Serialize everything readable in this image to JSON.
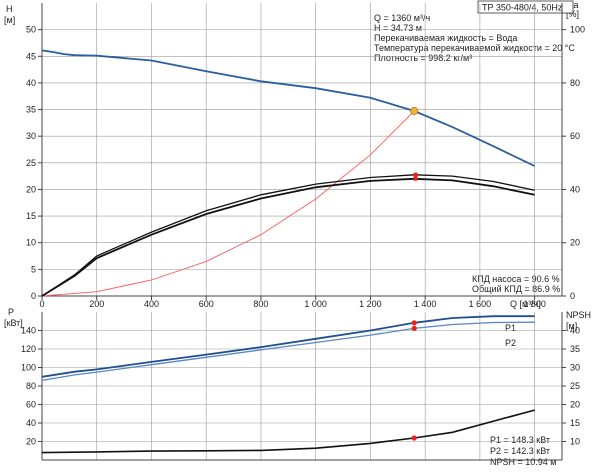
{
  "title_box": "TP 350-480/4, 50Hz",
  "info_lines": [
    "Q = 1360 м³/ч",
    "H = 34.73 м",
    "Перекачиваемая жидкость = Вода",
    "Температура перекачиваемой жидкости = 20 °C",
    "Плотность = 998.2 кг/м³"
  ],
  "eff_lines": [
    "КПД насоса = 90.6 %",
    "Общий КПД = 86.9 %"
  ],
  "power_lines": [
    "P1 = 148.3 кВт",
    "P2 = 142.3 кВт",
    "NPSH = 10.94 м"
  ],
  "colors": {
    "head": "#2a5f9e",
    "efficiency": "#111111",
    "system": "#ff5a5a",
    "p1": "#1f4f91",
    "p2": "#5b86c4",
    "npsh": "#111111",
    "marker": "#e8231e",
    "duty": "#f2b233"
  },
  "chart_data": [
    {
      "type": "line",
      "title": "TP 350-480/4, 50Hz",
      "xlabel": "Q [м³/ч]",
      "ylabel_left": "H [м]",
      "ylabel_right": "eta [%]",
      "xlim": [
        0,
        1900
      ],
      "ylim_left": [
        0,
        55
      ],
      "ylim_right": [
        0,
        110
      ],
      "x_ticks": [
        0,
        200,
        400,
        600,
        800,
        1000,
        1200,
        1400,
        1600,
        1800
      ],
      "x_tick_labels": [
        "0",
        "200",
        "400",
        "600",
        "800",
        "1 000",
        "1 200",
        "1 400",
        "1 600",
        "1 800"
      ],
      "y_left_ticks": [
        0,
        5,
        10,
        15,
        20,
        25,
        30,
        35,
        40,
        45,
        50
      ],
      "y_right_ticks": [
        0,
        20,
        40,
        60,
        80,
        100
      ],
      "grid": true,
      "series": [
        {
          "key": "head",
          "axis": "left",
          "x": [
            0,
            40,
            80,
            120,
            200,
            400,
            600,
            800,
            1000,
            1200,
            1360,
            1500,
            1650,
            1800
          ],
          "y": [
            46.1,
            45.8,
            45.4,
            45.2,
            45.1,
            44.2,
            42.2,
            40.3,
            39.0,
            37.2,
            34.73,
            31.7,
            28.1,
            24.4
          ]
        },
        {
          "key": "eff_a",
          "axis": "right",
          "x": [
            0,
            120,
            200,
            400,
            600,
            800,
            1000,
            1200,
            1360,
            1500,
            1650,
            1800
          ],
          "y": [
            0,
            8,
            15,
            24,
            32,
            38,
            42,
            44.5,
            45.5,
            45.0,
            43.0,
            39.7
          ]
        },
        {
          "key": "eff_b",
          "axis": "right",
          "x": [
            0,
            120,
            200,
            400,
            600,
            800,
            1000,
            1200,
            1360,
            1500,
            1650,
            1800
          ],
          "y": [
            0,
            7.6,
            14.2,
            23.0,
            30.8,
            36.6,
            40.8,
            43.2,
            44.0,
            43.4,
            41.2,
            38.0
          ]
        },
        {
          "key": "system",
          "axis": "left",
          "x": [
            0,
            200,
            400,
            600,
            800,
            1000,
            1200,
            1360
          ],
          "y": [
            0,
            0.8,
            3.0,
            6.5,
            11.5,
            18.2,
            26.5,
            34.73
          ]
        }
      ],
      "duty_point": {
        "x": 1360,
        "y": 34.73
      },
      "eff_marker": {
        "x": 1365,
        "y": 44.8
      }
    },
    {
      "type": "line",
      "xlabel": "Q [м³/ч]",
      "ylabel_left": "P [кВт]",
      "ylabel_right": "NPSH [м]",
      "xlim": [
        0,
        1900
      ],
      "ylim_left": [
        0,
        160
      ],
      "ylim_right": [
        5,
        45
      ],
      "y_left_ticks": [
        20,
        40,
        60,
        80,
        100,
        120,
        140
      ],
      "y_right_ticks": [
        10,
        15,
        20,
        25,
        30,
        35,
        40
      ],
      "grid": true,
      "series": [
        {
          "key": "p1",
          "name": "P1",
          "axis": "left",
          "x": [
            0,
            120,
            200,
            400,
            600,
            800,
            1000,
            1200,
            1360,
            1500,
            1650,
            1800
          ],
          "y": [
            90,
            95.5,
            98,
            106,
            114,
            122,
            131,
            140,
            148.3,
            153.5,
            155.5,
            155.5
          ]
        },
        {
          "key": "p2",
          "name": "P2",
          "axis": "left",
          "x": [
            0,
            120,
            200,
            400,
            600,
            800,
            1000,
            1200,
            1360,
            1500,
            1650,
            1800
          ],
          "y": [
            86,
            92,
            95,
            103,
            111,
            119,
            127,
            135,
            142.3,
            146.5,
            148.6,
            149
          ]
        },
        {
          "key": "npsh",
          "axis": "right",
          "x": [
            0,
            200,
            400,
            600,
            800,
            1000,
            1200,
            1360,
            1500,
            1650,
            1800
          ],
          "y": [
            7.0,
            7.2,
            7.4,
            7.5,
            7.6,
            8.2,
            9.5,
            10.94,
            12.5,
            15.5,
            18.5
          ]
        }
      ],
      "markers": [
        {
          "axis": "left",
          "x": 1360,
          "y": 148.3
        },
        {
          "axis": "left",
          "x": 1360,
          "y": 142.3
        },
        {
          "axis": "right",
          "x": 1360,
          "y": 10.94
        }
      ]
    }
  ]
}
